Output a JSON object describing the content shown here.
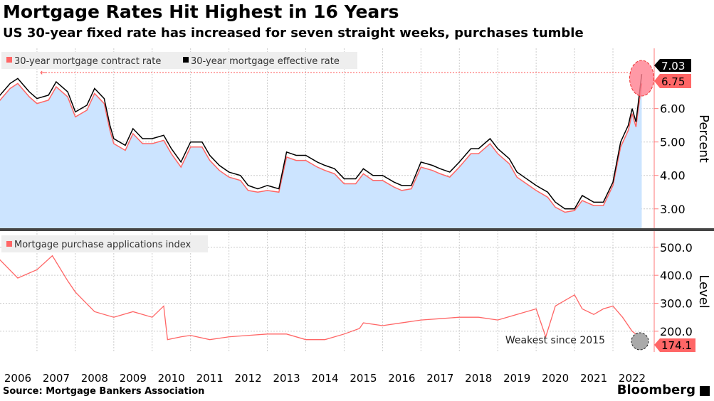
{
  "title": "Mortgage Rates Hit Highest in 16 Years",
  "subtitle": "US 30-year fixed rate has increased for seven straight weeks, purchases tumble",
  "source": "Source: Mortgage Bankers Association",
  "brand": "Bloomberg",
  "colors": {
    "contract": "#ff6666",
    "effective": "#000000",
    "fill": "#cce4ff",
    "index": "#ff6666"
  },
  "chart_data": [
    {
      "type": "area",
      "ylabel": "Percent",
      "ylim": [
        2.4,
        7.8
      ],
      "yticks": [
        "3.00",
        "4.00",
        "5.00",
        "6.00"
      ],
      "ytick_values": [
        3,
        4,
        5,
        6
      ],
      "grid": true,
      "legend": "top-left",
      "x": [
        2006.0,
        2006.3,
        2006.5,
        2006.8,
        2007.0,
        2007.3,
        2007.5,
        2007.8,
        2008.0,
        2008.3,
        2008.5,
        2008.75,
        2008.9,
        2009.0,
        2009.3,
        2009.5,
        2009.75,
        2010.0,
        2010.3,
        2010.5,
        2010.75,
        2011.0,
        2011.3,
        2011.5,
        2011.75,
        2012.0,
        2012.3,
        2012.5,
        2012.75,
        2013.0,
        2013.3,
        2013.5,
        2013.75,
        2014.0,
        2014.3,
        2014.5,
        2014.75,
        2015.0,
        2015.3,
        2015.5,
        2015.75,
        2016.0,
        2016.3,
        2016.5,
        2016.75,
        2017.0,
        2017.3,
        2017.5,
        2017.75,
        2018.0,
        2018.3,
        2018.5,
        2018.8,
        2019.0,
        2019.3,
        2019.5,
        2019.75,
        2020.0,
        2020.3,
        2020.5,
        2020.75,
        2021.0,
        2021.2,
        2021.5,
        2021.75,
        2022.0,
        2022.2,
        2022.4,
        2022.5,
        2022.6,
        2022.75
      ],
      "series": [
        {
          "name": "30-year mortgage contract rate",
          "values": [
            6.2,
            6.6,
            6.75,
            6.35,
            6.15,
            6.25,
            6.65,
            6.35,
            5.75,
            5.95,
            6.45,
            6.15,
            5.35,
            4.95,
            4.75,
            5.25,
            4.95,
            4.95,
            5.05,
            4.65,
            4.25,
            4.85,
            4.85,
            4.45,
            4.15,
            3.95,
            3.85,
            3.55,
            3.5,
            3.55,
            3.5,
            4.55,
            4.45,
            4.45,
            4.25,
            4.15,
            4.05,
            3.75,
            3.75,
            4.05,
            3.85,
            3.85,
            3.65,
            3.55,
            3.6,
            4.25,
            4.15,
            4.05,
            3.95,
            4.25,
            4.65,
            4.65,
            4.95,
            4.65,
            4.35,
            3.95,
            3.75,
            3.55,
            3.35,
            3.05,
            2.9,
            2.95,
            3.25,
            3.1,
            3.1,
            3.7,
            4.85,
            5.35,
            5.85,
            5.45,
            6.75
          ]
        },
        {
          "name": "30-year mortgage effective rate",
          "values": [
            6.35,
            6.75,
            6.9,
            6.5,
            6.3,
            6.4,
            6.8,
            6.5,
            5.9,
            6.1,
            6.6,
            6.3,
            5.5,
            5.1,
            4.9,
            5.4,
            5.1,
            5.1,
            5.2,
            4.8,
            4.4,
            5.0,
            5.0,
            4.6,
            4.3,
            4.1,
            4.0,
            3.7,
            3.6,
            3.7,
            3.6,
            4.7,
            4.6,
            4.6,
            4.4,
            4.3,
            4.2,
            3.9,
            3.9,
            4.2,
            4.0,
            4.0,
            3.8,
            3.7,
            3.7,
            4.4,
            4.3,
            4.2,
            4.1,
            4.4,
            4.8,
            4.8,
            5.1,
            4.8,
            4.5,
            4.1,
            3.9,
            3.7,
            3.5,
            3.2,
            3.0,
            3.0,
            3.4,
            3.2,
            3.2,
            3.8,
            5.0,
            5.5,
            6.0,
            5.6,
            7.03
          ]
        }
      ],
      "last_labels": [
        "7.03",
        "6.75"
      ]
    },
    {
      "type": "line",
      "ylabel": "Level",
      "ylim": [
        126,
        558
      ],
      "yticks": [
        "200.0",
        "300.0",
        "400.0",
        "500.0"
      ],
      "ytick_values": [
        200,
        300,
        400,
        500
      ],
      "grid": true,
      "legend": "top-left",
      "x": [
        2006.0,
        2006.5,
        2007.0,
        2007.4,
        2007.8,
        2008.0,
        2008.5,
        2009.0,
        2009.5,
        2010.0,
        2010.3,
        2010.4,
        2010.75,
        2011.0,
        2011.5,
        2012.0,
        2012.5,
        2013.0,
        2013.5,
        2014.0,
        2014.5,
        2015.0,
        2015.4,
        2015.5,
        2016.0,
        2016.5,
        2017.0,
        2017.5,
        2018.0,
        2018.5,
        2019.0,
        2019.5,
        2020.0,
        2020.25,
        2020.5,
        2020.75,
        2021.0,
        2021.2,
        2021.5,
        2021.75,
        2022.0,
        2022.25,
        2022.5,
        2022.75
      ],
      "series": [
        {
          "name": "Mortgage purchase applications index",
          "values": [
            460,
            390,
            420,
            470,
            380,
            340,
            270,
            250,
            270,
            250,
            290,
            170,
            180,
            185,
            170,
            180,
            185,
            190,
            190,
            170,
            170,
            190,
            210,
            230,
            220,
            230,
            240,
            245,
            250,
            250,
            240,
            260,
            280,
            180,
            290,
            310,
            330,
            280,
            260,
            280,
            290,
            250,
            200,
            174.1
          ]
        }
      ],
      "annotation": "Weakest since 2015",
      "last_label": "174.1"
    }
  ],
  "xticks": [
    "2006",
    "2007",
    "2008",
    "2009",
    "2010",
    "2011",
    "2012",
    "2013",
    "2014",
    "2015",
    "2016",
    "2017",
    "2018",
    "2019",
    "2020",
    "2021",
    "2022"
  ]
}
